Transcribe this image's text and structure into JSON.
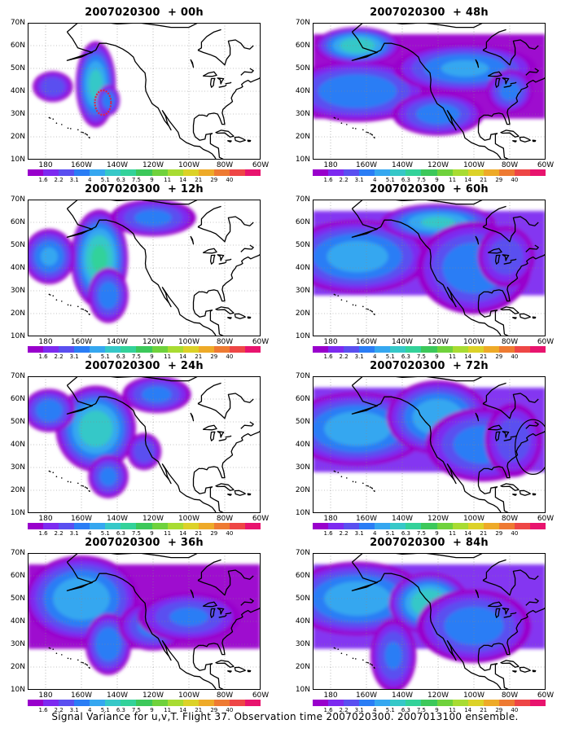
{
  "panels": [
    {
      "title": "2007020300  + 00h",
      "field": {
        "base": 0,
        "blobs": [
          [
            -152,
            43,
            7,
            14,
            5.2
          ],
          [
            -145,
            36,
            4,
            5,
            3.5
          ],
          [
            -176,
            42,
            7,
            5,
            2.6
          ]
        ]
      },
      "annotation": {
        "type": "circle",
        "lon": -148,
        "lat": 35,
        "r": 4.5,
        "color": "#e0204a",
        "dashed": true
      }
    },
    {
      "title": "2007020300  + 48h",
      "field": {
        "base": 0.4,
        "blobs": [
          [
            -165,
            40,
            25,
            10,
            3.8
          ],
          [
            -120,
            30,
            16,
            7,
            3.4
          ],
          [
            -165,
            60,
            15,
            6,
            5.5
          ],
          [
            -105,
            50,
            25,
            8,
            4.0
          ],
          [
            -80,
            40,
            8,
            7,
            3.2
          ]
        ]
      }
    },
    {
      "title": "2007020300  + 12h",
      "field": {
        "base": 0,
        "blobs": [
          [
            -150,
            44,
            10,
            16,
            6.0
          ],
          [
            -178,
            45,
            9,
            9,
            4.0
          ],
          [
            -120,
            62,
            15,
            6,
            3.2
          ],
          [
            -145,
            28,
            7,
            9,
            3.5
          ]
        ]
      }
    },
    {
      "title": "2007020300  + 60h",
      "field": {
        "base": 1.0,
        "blobs": [
          [
            -165,
            45,
            25,
            12,
            4.4
          ],
          [
            -120,
            60,
            20,
            6,
            5.0
          ],
          [
            -100,
            40,
            20,
            15,
            3.8
          ],
          [
            -82,
            45,
            10,
            10,
            2.6
          ]
        ]
      }
    },
    {
      "title": "2007020300  + 24h",
      "field": {
        "base": 0,
        "blobs": [
          [
            -152,
            47,
            14,
            14,
            5.6
          ],
          [
            -178,
            55,
            9,
            7,
            3.6
          ],
          [
            -118,
            62,
            12,
            6,
            3.2
          ],
          [
            -145,
            26,
            7,
            7,
            3.2
          ],
          [
            -125,
            37,
            6,
            6,
            2.6
          ]
        ]
      }
    },
    {
      "title": "2007020300  + 72h",
      "field": {
        "base": 1.0,
        "blobs": [
          [
            -165,
            47,
            25,
            12,
            4.6
          ],
          [
            -120,
            52,
            18,
            12,
            4.8
          ],
          [
            -95,
            40,
            20,
            12,
            3.6
          ],
          [
            -78,
            42,
            10,
            12,
            2.6
          ]
        ]
      },
      "annotation": {
        "type": "circle",
        "lon": -67,
        "lat": 39,
        "r": 10,
        "color": "#000000",
        "dashed": false
      }
    },
    {
      "title": "2007020300  + 36h",
      "field": {
        "base": 0.3,
        "blobs": [
          [
            -160,
            50,
            20,
            14,
            4.8
          ],
          [
            -145,
            30,
            8,
            10,
            3.8
          ],
          [
            -120,
            38,
            12,
            8,
            3.3
          ],
          [
            -100,
            42,
            18,
            8,
            3.0
          ]
        ]
      }
    },
    {
      "title": "2007020300  + 84h",
      "field": {
        "base": 1.0,
        "blobs": [
          [
            -165,
            50,
            25,
            12,
            4.6
          ],
          [
            -125,
            48,
            14,
            10,
            5.8
          ],
          [
            -100,
            38,
            20,
            12,
            3.6
          ],
          [
            -145,
            25,
            8,
            12,
            3.0
          ]
        ]
      }
    }
  ],
  "map": {
    "lon_range": [
      -190,
      -60
    ],
    "lat_range": [
      10,
      70
    ],
    "y_ticks": [
      {
        "v": 10,
        "t": "10N"
      },
      {
        "v": 20,
        "t": "20N"
      },
      {
        "v": 30,
        "t": "30N"
      },
      {
        "v": 40,
        "t": "40N"
      },
      {
        "v": 50,
        "t": "50N"
      },
      {
        "v": 60,
        "t": "60N"
      },
      {
        "v": 70,
        "t": "70N"
      }
    ],
    "x_ticks": [
      {
        "v": -180,
        "t": "180"
      },
      {
        "v": -160,
        "t": "160W"
      },
      {
        "v": -140,
        "t": "140W"
      },
      {
        "v": -120,
        "t": "120W"
      },
      {
        "v": -100,
        "t": "100W"
      },
      {
        "v": -80,
        "t": "80W"
      },
      {
        "v": -60,
        "t": "60W"
      }
    ]
  },
  "colorbar": {
    "colors": [
      "#9900cc",
      "#7d2af0",
      "#5a4ff0",
      "#2a7df5",
      "#35a7f0",
      "#36c8c8",
      "#33d29a",
      "#3cc85a",
      "#6fd23c",
      "#a8dc32",
      "#dcd228",
      "#eeaa28",
      "#ee7a32",
      "#ee4646",
      "#e8146e"
    ],
    "labels": [
      "1.6",
      "2.2",
      "3.1",
      "4",
      "5.1",
      "6.3",
      "7.5",
      "9",
      "11",
      "14",
      "21",
      "29",
      "40"
    ]
  },
  "caption": "Signal Variance for u,v,T. Flight 37. Observation time 2007020300. 2007013100 ensemble."
}
